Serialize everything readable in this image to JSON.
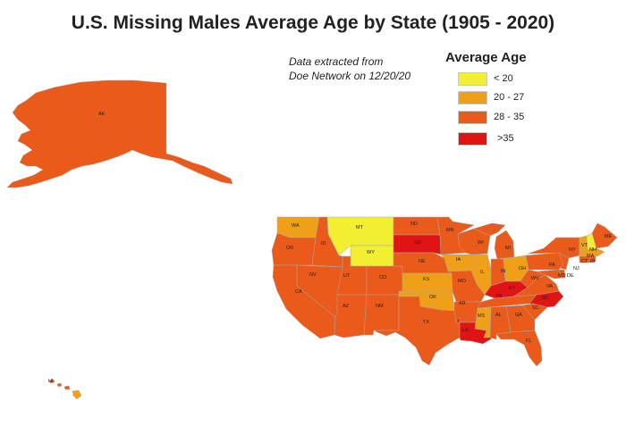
{
  "title": "U.S. Missing Males Average Age by State (1905 - 2020)",
  "note": {
    "line1": "Data extracted from",
    "line2": "Doe Network on 12/20/20"
  },
  "legend": {
    "title": "Average Age",
    "items": [
      {
        "label": "< 20",
        "color": "#f2ee32"
      },
      {
        "label": "20 - 27",
        "color": "#f0a018"
      },
      {
        "label": "28 - 35",
        "color": "#ea5a1a"
      },
      {
        "label": ">35",
        "color": "#e01414"
      }
    ]
  },
  "colors": {
    "base": "#ea5a1a",
    "border": "#a8a8a8"
  },
  "states": {
    "AK": "AK",
    "HI": "HI",
    "WA": "WA",
    "OR": "OR",
    "CA": "CA",
    "ID": "ID",
    "NV": "NV",
    "MT": "MT",
    "WY": "WY",
    "UT": "UT",
    "AZ": "AZ",
    "CO": "CO",
    "NM": "NM",
    "ND": "ND",
    "SD": "SD",
    "NE": "NE",
    "KS": "KS",
    "OK": "OK",
    "TX": "TX",
    "MN": "MN",
    "IA": "IA",
    "MO": "MO",
    "AR": "AR",
    "LA": "LA",
    "WI": "WI",
    "IL": "IL",
    "MS": "MS",
    "MI": "MI",
    "IN": "IN",
    "KY": "KY",
    "TN": "TN",
    "AL": "AL",
    "GA": "GA",
    "FL": "FL",
    "OH": "OH",
    "WV": "WV",
    "VA": "VA",
    "NC": "NC",
    "SC": "SC",
    "PA": "PA",
    "NY": "NY",
    "VT": "VT",
    "NH": "NH",
    "ME": "ME",
    "MA": "MA",
    "CT": "CT",
    "RI": "RI",
    "NJ": "NJ",
    "MD": "MD",
    "DE": "DE"
  }
}
